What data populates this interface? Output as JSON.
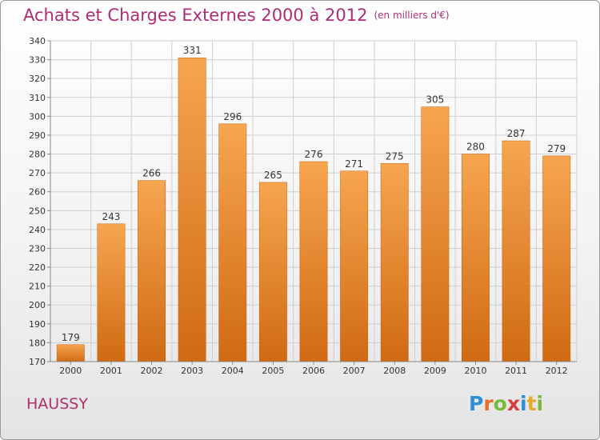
{
  "title": "Achats et Charges Externes 2000 à 2012",
  "subtitle": "(en milliers d'€)",
  "commune": "HAUSSY",
  "logo": {
    "text": "Proxiti",
    "letters": [
      {
        "char": "P",
        "color": "#2f8fd6"
      },
      {
        "char": "r",
        "color": "#e6702a"
      },
      {
        "char": "o",
        "color": "#7ab83a"
      },
      {
        "char": "x",
        "color": "#d63e3e"
      },
      {
        "char": "i",
        "color": "#2f8fd6"
      },
      {
        "char": "t",
        "color": "#e6a92a"
      },
      {
        "char": "i",
        "color": "#7ab83a"
      }
    ]
  },
  "colors": {
    "bar_top": "#f7a54f",
    "bar_bottom": "#d06a14",
    "bar_edge": "#c8640f",
    "grid": "#cfcfcf",
    "axis_text": "#333333",
    "title": "#ad2c74"
  },
  "chart_data": {
    "type": "bar",
    "categories": [
      "2000",
      "2001",
      "2002",
      "2003",
      "2004",
      "2005",
      "2006",
      "2007",
      "2008",
      "2009",
      "2010",
      "2011",
      "2012"
    ],
    "values": [
      179,
      243,
      266,
      331,
      296,
      265,
      276,
      271,
      275,
      305,
      280,
      287,
      279
    ],
    "ylim": [
      170,
      340
    ],
    "yticks": [
      170,
      180,
      190,
      200,
      210,
      220,
      230,
      240,
      250,
      260,
      270,
      280,
      290,
      300,
      310,
      320,
      330,
      340
    ],
    "grid": true,
    "data_labels": true
  }
}
